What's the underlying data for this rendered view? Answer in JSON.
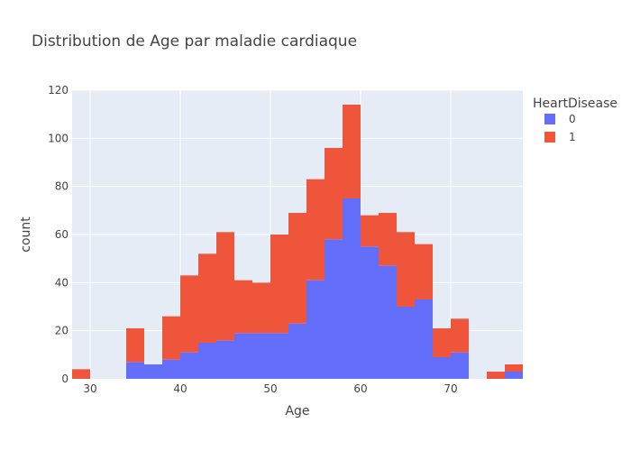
{
  "chart_data": {
    "type": "bar",
    "barmode": "stack",
    "title": "Distribution de Age par maladie cardiaque",
    "xlabel": "Age",
    "ylabel": "count",
    "legend_title": "HeartDisease",
    "legend_position": "right",
    "grid": true,
    "xlim": [
      28,
      78
    ],
    "ylim": [
      0,
      120
    ],
    "x_ticks": [
      30,
      40,
      50,
      60,
      70
    ],
    "y_ticks": [
      0,
      20,
      40,
      60,
      80,
      100,
      120
    ],
    "bin_width": 2,
    "bin_starts": [
      28,
      30,
      32,
      34,
      36,
      38,
      40,
      42,
      44,
      46,
      48,
      50,
      52,
      54,
      56,
      58,
      60,
      62,
      64,
      66,
      68,
      70,
      72,
      74,
      76
    ],
    "series": [
      {
        "name": "0",
        "color": "#636efa",
        "values": [
          0,
          0,
          0,
          7,
          6,
          8,
          11,
          15,
          16,
          19,
          19,
          19,
          23,
          41,
          58,
          75,
          55,
          47,
          30,
          33,
          9,
          11,
          0,
          0,
          3
        ]
      },
      {
        "name": "1",
        "color": "#ef553b",
        "values": [
          4,
          0,
          0,
          14,
          0,
          18,
          32,
          37,
          45,
          22,
          21,
          41,
          46,
          42,
          38,
          39,
          13,
          22,
          31,
          23,
          12,
          14,
          0,
          3,
          3
        ]
      }
    ]
  }
}
